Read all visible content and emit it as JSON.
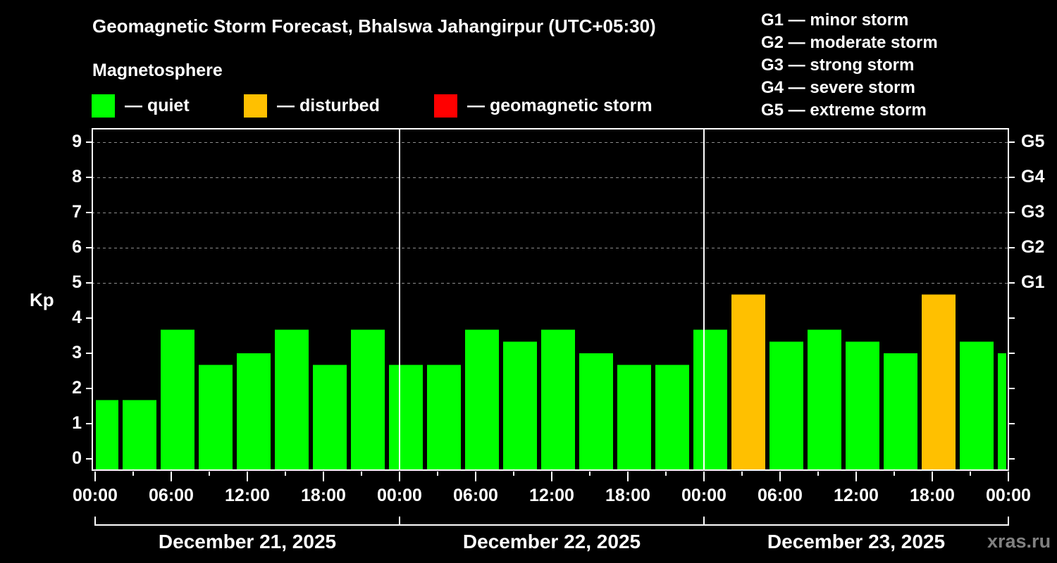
{
  "title": "Geomagnetic Storm Forecast, Bhalswa Jahangirpur (UTC+05:30)",
  "legend": {
    "heading": "Magnetosphere",
    "items": [
      {
        "label": "— quiet",
        "color": "#00ff00"
      },
      {
        "label": "— disturbed",
        "color": "#ffc000"
      },
      {
        "label": "— geomagnetic storm",
        "color": "#ff0000"
      }
    ]
  },
  "g_scale": [
    {
      "level": "G1",
      "text": "G1 — minor storm"
    },
    {
      "level": "G2",
      "text": "G2 — moderate storm"
    },
    {
      "level": "G3",
      "text": "G3 — strong storm"
    },
    {
      "level": "G4",
      "text": "G4 — severe storm"
    },
    {
      "level": "G5",
      "text": "G5 — extreme storm"
    }
  ],
  "watermark": "xras.ru",
  "chart_data": {
    "type": "bar",
    "title": "Geomagnetic Storm Forecast, Bhalswa Jahangirpur (UTC+05:30)",
    "xlabel": "",
    "ylabel": "Kp",
    "ylim": [
      0,
      9
    ],
    "yticks": [
      0,
      1,
      2,
      3,
      4,
      5,
      6,
      7,
      8,
      9
    ],
    "right_axis_labels": [
      {
        "kp": 5,
        "label": "G1"
      },
      {
        "kp": 6,
        "label": "G2"
      },
      {
        "kp": 7,
        "label": "G3"
      },
      {
        "kp": 8,
        "label": "G4"
      },
      {
        "kp": 9,
        "label": "G5"
      }
    ],
    "grid": "dashed horizontal at Kp 5-9",
    "xtick_labels": [
      "00:00",
      "06:00",
      "12:00",
      "18:00",
      "00:00",
      "06:00",
      "12:00",
      "18:00",
      "00:00",
      "06:00",
      "12:00",
      "18:00",
      "00:00"
    ],
    "dates": [
      "December 21, 2025",
      "December 22, 2025",
      "December 23, 2025"
    ],
    "interval_hours": 3,
    "categories": [
      "Dec21 02:30",
      "Dec21 05:30",
      "Dec21 08:30",
      "Dec21 11:30",
      "Dec21 14:30",
      "Dec21 17:30",
      "Dec21 20:30",
      "Dec21 23:30",
      "Dec22 02:30",
      "Dec22 05:30",
      "Dec22 08:30",
      "Dec22 11:30",
      "Dec22 14:30",
      "Dec22 17:30",
      "Dec22 20:30",
      "Dec22 23:30",
      "Dec23 02:30",
      "Dec23 05:30",
      "Dec23 08:30",
      "Dec23 11:30",
      "Dec23 14:30",
      "Dec23 17:30",
      "Dec23 20:30",
      "Dec23 23:30",
      "Dec24 00:00"
    ],
    "values": [
      1.67,
      1.67,
      3.67,
      2.67,
      3.0,
      3.67,
      2.67,
      3.67,
      2.67,
      2.67,
      3.67,
      3.33,
      3.67,
      3.0,
      2.67,
      2.67,
      3.67,
      4.67,
      3.33,
      3.67,
      3.33,
      3.0,
      4.67,
      3.33,
      3.0
    ],
    "status": [
      "quiet",
      "quiet",
      "quiet",
      "quiet",
      "quiet",
      "quiet",
      "quiet",
      "quiet",
      "quiet",
      "quiet",
      "quiet",
      "quiet",
      "quiet",
      "quiet",
      "quiet",
      "quiet",
      "quiet",
      "disturbed",
      "quiet",
      "quiet",
      "quiet",
      "quiet",
      "disturbed",
      "quiet",
      "quiet"
    ],
    "colors": {
      "quiet": "#00ff00",
      "disturbed": "#ffc000",
      "storm": "#ff0000"
    },
    "bar_x_ranges": [
      [
        136,
        168
      ],
      [
        174,
        222
      ],
      [
        228,
        276
      ],
      [
        282,
        330
      ],
      [
        336,
        384
      ],
      [
        390,
        438
      ],
      [
        444,
        492
      ],
      [
        498,
        546
      ],
      [
        552,
        600
      ],
      [
        606,
        654
      ],
      [
        660,
        708
      ],
      [
        714,
        762
      ],
      [
        768,
        816
      ],
      [
        822,
        870
      ],
      [
        876,
        924
      ],
      [
        930,
        978
      ],
      [
        984,
        1032
      ],
      [
        1038,
        1086
      ],
      [
        1092,
        1140
      ],
      [
        1146,
        1194
      ],
      [
        1200,
        1248
      ],
      [
        1254,
        1302
      ],
      [
        1308,
        1356
      ],
      [
        1362,
        1410
      ],
      [
        1416,
        1428
      ]
    ],
    "legend_position": "top"
  }
}
